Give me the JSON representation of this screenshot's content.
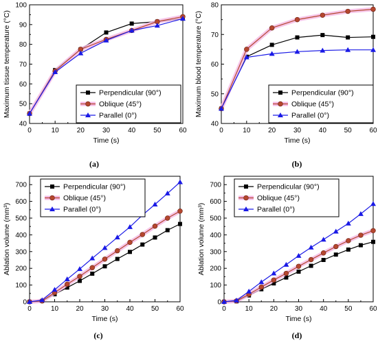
{
  "chart_data": [
    {
      "panel": "(a)",
      "type": "line",
      "xlabel": "Time (s)",
      "ylabel": "Maximum tissue temperature (°C)",
      "xlim": [
        0,
        60
      ],
      "ylim": [
        40,
        100
      ],
      "xticks": [
        0,
        10,
        20,
        30,
        40,
        50,
        60
      ],
      "yticks": [
        40,
        50,
        60,
        70,
        80,
        90,
        100
      ],
      "legend_position": "bottom-right",
      "x": [
        0,
        10,
        20,
        30,
        40,
        50,
        60
      ],
      "series": [
        {
          "name": "Perpendicular (90°)",
          "marker": "square",
          "color": "#000000",
          "band": false,
          "values": [
            45,
            67,
            77.5,
            86,
            90.5,
            91.5,
            93
          ]
        },
        {
          "name": "Oblique (45°)",
          "marker": "circle",
          "color": "#b5472f",
          "band": true,
          "values": [
            45,
            66.5,
            77.5,
            82.5,
            87,
            91.5,
            94
          ]
        },
        {
          "name": "Parallel (0°)",
          "marker": "triangle",
          "color": "#1a1ae6",
          "band": false,
          "values": [
            45,
            66,
            75.5,
            82,
            87,
            89.5,
            93
          ]
        }
      ]
    },
    {
      "panel": "(b)",
      "type": "line",
      "xlabel": "Time (s)",
      "ylabel": "Maximum blood temperature (°C)",
      "xlim": [
        0,
        60
      ],
      "ylim": [
        40,
        80
      ],
      "xticks": [
        0,
        10,
        20,
        30,
        40,
        50,
        60
      ],
      "yticks": [
        40,
        50,
        60,
        70,
        80
      ],
      "legend_position": "bottom-right",
      "x": [
        0,
        10,
        20,
        30,
        40,
        50,
        60
      ],
      "series": [
        {
          "name": "Perpendicular (90°)",
          "marker": "square",
          "color": "#000000",
          "band": false,
          "values": [
            45,
            62.5,
            66.5,
            69,
            69.8,
            69,
            69.2
          ]
        },
        {
          "name": "Oblique (45°)",
          "marker": "circle",
          "color": "#b5472f",
          "band": true,
          "values": [
            45,
            65,
            72.2,
            75,
            76.5,
            77.8,
            78.5
          ]
        },
        {
          "name": "Parallel (0°)",
          "marker": "triangle",
          "color": "#1a1ae6",
          "band": false,
          "values": [
            45,
            62.3,
            63.5,
            64.2,
            64.6,
            64.8,
            64.8
          ]
        }
      ]
    },
    {
      "panel": "(c)",
      "type": "line",
      "xlabel": "Time (s)",
      "ylabel": "Ablation volume (mm³)",
      "xlim": [
        0,
        60
      ],
      "ylim": [
        0,
        750
      ],
      "xticks": [
        0,
        10,
        20,
        30,
        40,
        50,
        60
      ],
      "yticks": [
        0,
        100,
        200,
        300,
        400,
        500,
        600,
        700
      ],
      "legend_position": "top-left",
      "x": [
        0,
        5,
        10,
        15,
        20,
        25,
        30,
        35,
        40,
        45,
        50,
        55,
        60
      ],
      "series": [
        {
          "name": "Perpendicular (90°)",
          "marker": "square",
          "color": "#000000",
          "band": false,
          "values": [
            0,
            5,
            45,
            85,
            125,
            168,
            212,
            256,
            298,
            342,
            384,
            428,
            465
          ]
        },
        {
          "name": "Oblique (45°)",
          "marker": "circle",
          "color": "#b5472f",
          "band": true,
          "values": [
            0,
            5,
            55,
            105,
            152,
            204,
            255,
            305,
            355,
            402,
            452,
            500,
            542
          ]
        },
        {
          "name": "Parallel (0°)",
          "marker": "triangle",
          "color": "#1a1ae6",
          "band": false,
          "values": [
            0,
            10,
            72,
            135,
            196,
            260,
            322,
            385,
            447,
            518,
            582,
            648,
            715
          ]
        }
      ]
    },
    {
      "panel": "(d)",
      "type": "line",
      "xlabel": "Time (s)",
      "ylabel": "Ablation volume (mm³)",
      "xlim": [
        0,
        60
      ],
      "ylim": [
        0,
        750
      ],
      "xticks": [
        0,
        10,
        20,
        30,
        40,
        50,
        60
      ],
      "yticks": [
        0,
        100,
        200,
        300,
        400,
        500,
        600,
        700
      ],
      "legend_position": "top-left",
      "x": [
        0,
        5,
        10,
        15,
        20,
        25,
        30,
        35,
        40,
        45,
        50,
        55,
        60
      ],
      "series": [
        {
          "name": "Perpendicular (90°)",
          "marker": "square",
          "color": "#000000",
          "band": false,
          "values": [
            0,
            3,
            38,
            75,
            110,
            145,
            180,
            215,
            250,
            282,
            312,
            338,
            358
          ]
        },
        {
          "name": "Oblique (45°)",
          "marker": "circle",
          "color": "#b5472f",
          "band": true,
          "values": [
            0,
            5,
            45,
            88,
            130,
            170,
            212,
            252,
            292,
            330,
            365,
            398,
            425
          ]
        },
        {
          "name": "Parallel (0°)",
          "marker": "triangle",
          "color": "#1a1ae6",
          "band": false,
          "values": [
            0,
            8,
            62,
            118,
            170,
            222,
            275,
            325,
            372,
            420,
            468,
            525,
            585
          ]
        }
      ]
    }
  ]
}
